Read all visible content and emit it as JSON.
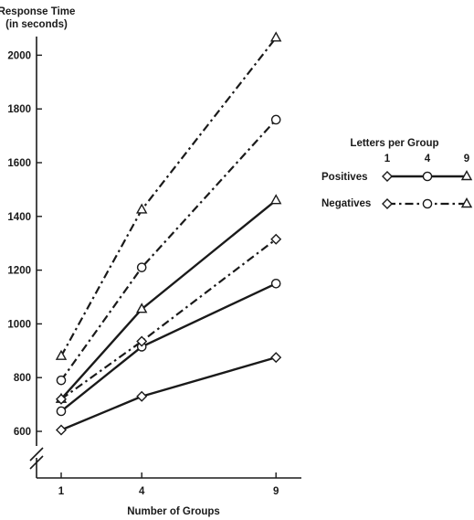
{
  "chart_data": {
    "type": "line",
    "ylabel_line1": "Response Time",
    "ylabel_line2": "(in seconds)",
    "xlabel": "Number of Groups",
    "x": [
      1,
      4,
      9
    ],
    "xticks": [
      "1",
      "4",
      "9"
    ],
    "yticks": [
      "600",
      "800",
      "1000",
      "1200",
      "1400",
      "1600",
      "1800",
      "2000"
    ],
    "ylim": [
      600,
      2000
    ],
    "grid": false,
    "legend": {
      "placement": "right",
      "header": "Letters per Group",
      "letters": [
        "1",
        "4",
        "9"
      ],
      "rows": [
        "Positives",
        "Negatives"
      ]
    },
    "series": [
      {
        "type": "Positives",
        "letters": 1,
        "marker": "diamond",
        "style": "solid",
        "values": [
          605,
          730,
          875
        ]
      },
      {
        "type": "Positives",
        "letters": 4,
        "marker": "circle",
        "style": "solid",
        "values": [
          675,
          915,
          1150
        ]
      },
      {
        "type": "Positives",
        "letters": 9,
        "marker": "triangle",
        "style": "solid",
        "values": [
          720,
          1055,
          1460
        ]
      },
      {
        "type": "Negatives",
        "letters": 1,
        "marker": "diamond",
        "style": "dashdot",
        "values": [
          720,
          935,
          1315
        ]
      },
      {
        "type": "Negatives",
        "letters": 4,
        "marker": "circle",
        "style": "dashdot",
        "values": [
          790,
          1210,
          1760
        ]
      },
      {
        "type": "Negatives",
        "letters": 9,
        "marker": "triangle",
        "style": "dashdot",
        "values": [
          880,
          1425,
          2065
        ]
      }
    ]
  }
}
